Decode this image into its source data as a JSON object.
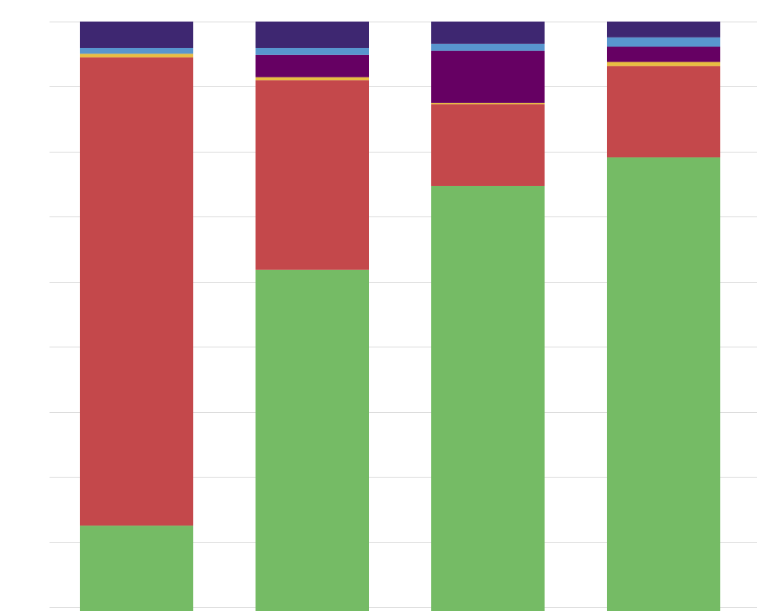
{
  "chart_data": {
    "type": "bar",
    "stacked": true,
    "normalized": true,
    "orientation": "vertical",
    "title": "",
    "xlabel": "",
    "ylabel": "",
    "ylim": [
      0,
      100
    ],
    "grid": true,
    "legend": "none",
    "categories": [
      "",
      "",
      "",
      ""
    ],
    "series": [
      {
        "color": "#75BB65",
        "values": [
          13.9,
          57.6,
          71.9,
          76.8
        ]
      },
      {
        "color": "#C4484B",
        "values": [
          80.0,
          32.4,
          14.0,
          15.6
        ]
      },
      {
        "color": "#E8BE41",
        "values": [
          0.6,
          0.5,
          0.2,
          0.7
        ]
      },
      {
        "color": "#660063",
        "values": [
          0.0,
          3.8,
          8.9,
          2.6
        ]
      },
      {
        "color": "#5896CE",
        "values": [
          1.0,
          1.2,
          1.2,
          1.6
        ]
      },
      {
        "color": "#3E2771",
        "values": [
          4.5,
          4.5,
          3.8,
          2.7
        ]
      }
    ]
  }
}
